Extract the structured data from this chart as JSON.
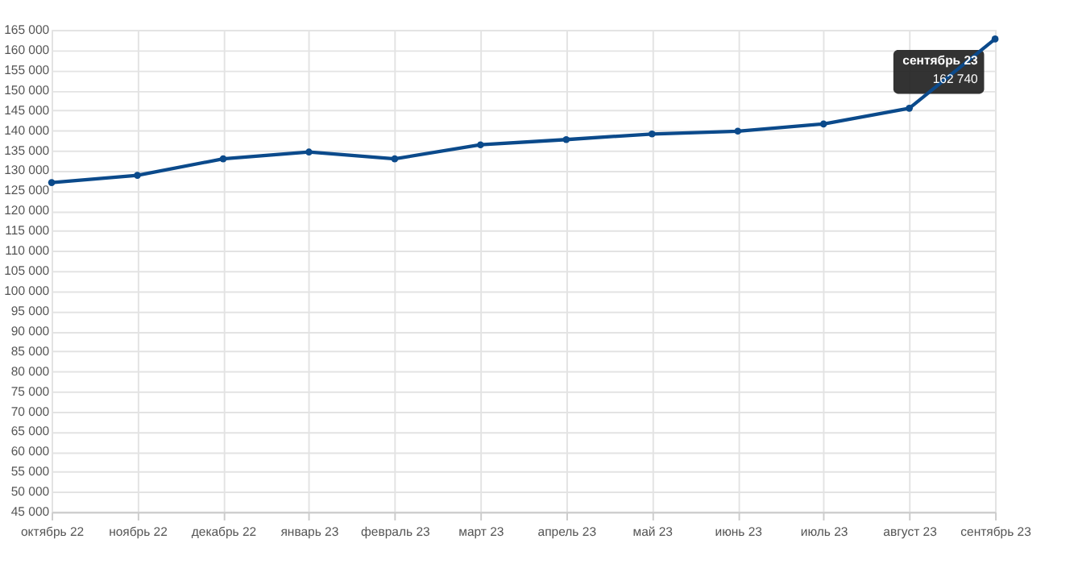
{
  "chart_data": {
    "type": "line",
    "categories": [
      "октябрь 22",
      "ноябрь 22",
      "декабрь 22",
      "январь 23",
      "февраль 23",
      "март 23",
      "апрель 23",
      "май 23",
      "июнь 23",
      "июль 23",
      "август 23",
      "сентябрь 23"
    ],
    "series": [
      {
        "color": "#0b4a8b",
        "values": [
          127000,
          128800,
          132900,
          134600,
          132900,
          136400,
          137700,
          139100,
          139800,
          141600,
          145500,
          162740
        ]
      }
    ],
    "ylim": [
      45000,
      165000
    ],
    "yticks": [
      {
        "value": 45000,
        "label": "45 000"
      },
      {
        "value": 50000,
        "label": "50 000"
      },
      {
        "value": 55000,
        "label": "55 000"
      },
      {
        "value": 60000,
        "label": "60 000"
      },
      {
        "value": 65000,
        "label": "65 000"
      },
      {
        "value": 70000,
        "label": "70 000"
      },
      {
        "value": 75000,
        "label": "75 000"
      },
      {
        "value": 80000,
        "label": "80 000"
      },
      {
        "value": 85000,
        "label": "85 000"
      },
      {
        "value": 90000,
        "label": "90 000"
      },
      {
        "value": 95000,
        "label": "95 000"
      },
      {
        "value": 100000,
        "label": "100 000"
      },
      {
        "value": 105000,
        "label": "105 000"
      },
      {
        "value": 110000,
        "label": "110 000"
      },
      {
        "value": 115000,
        "label": "115 000"
      },
      {
        "value": 120000,
        "label": "120 000"
      },
      {
        "value": 125000,
        "label": "125 000"
      },
      {
        "value": 130000,
        "label": "130 000"
      },
      {
        "value": 135000,
        "label": "135 000"
      },
      {
        "value": 140000,
        "label": "140 000"
      },
      {
        "value": 145000,
        "label": "145 000"
      },
      {
        "value": 150000,
        "label": "150 000"
      },
      {
        "value": 155000,
        "label": "155 000"
      },
      {
        "value": 160000,
        "label": "160 000"
      },
      {
        "value": 165000,
        "label": "165 000"
      }
    ],
    "annotations": [
      {
        "text": "сентябрь 23\n162 740",
        "x": "сентябрь 23",
        "y": 162740
      }
    ],
    "grid": true,
    "marker": "circle",
    "line_style": "solid"
  }
}
